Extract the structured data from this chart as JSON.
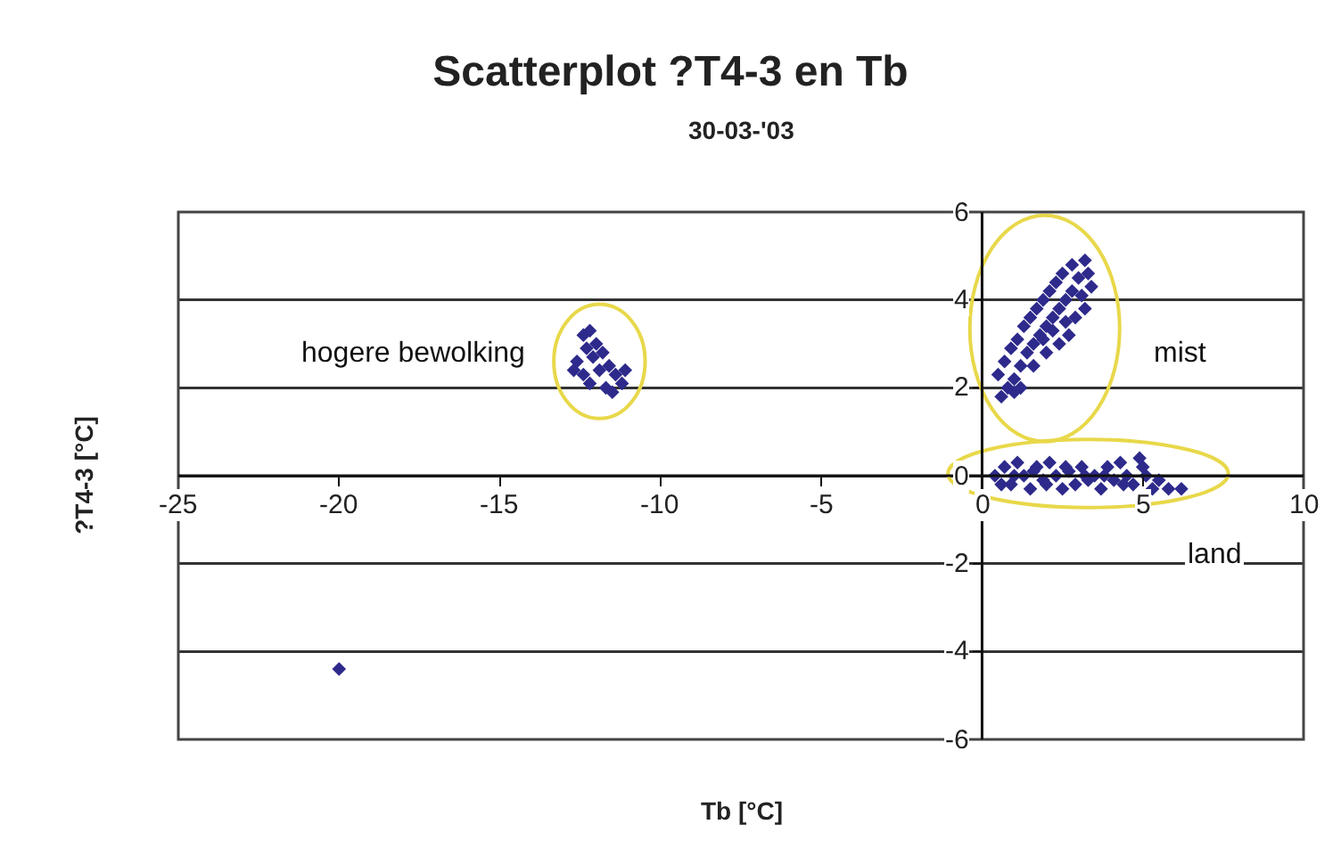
{
  "chart_data": {
    "type": "scatter",
    "title": "Scatterplot ?T4-3 en Tb",
    "subtitle": "30-03-'03",
    "xlabel": "Tb [°C]",
    "ylabel": "?T4-3 [°C]",
    "xlim": [
      -25,
      10
    ],
    "xticks": [
      -25,
      -20,
      -15,
      -10,
      -5,
      0,
      5,
      10
    ],
    "ylim": [
      -6,
      6
    ],
    "yticks": [
      -6,
      -4,
      -2,
      0,
      2,
      4,
      6
    ],
    "grid": "y",
    "marker": "diamond",
    "annotations": [
      "hogere bewolking",
      "mist",
      "land"
    ],
    "series": [
      {
        "color": "#2e2a8c",
        "x": [
          -12.4,
          -12.2,
          -12.3,
          -12.0,
          -12.6,
          -12.1,
          -11.8,
          -12.4,
          -11.9,
          -11.6,
          -12.2,
          -11.4,
          -11.7,
          -11.2,
          -11.5,
          -12.7,
          -11.1
        ],
        "values": [
          3.2,
          3.3,
          2.9,
          3.0,
          2.6,
          2.7,
          2.8,
          2.3,
          2.4,
          2.5,
          2.1,
          2.3,
          2.0,
          2.1,
          1.9,
          2.4,
          2.4
        ]
      },
      {
        "color": "#2e2a8c",
        "x": [
          0.6,
          0.8,
          0.5,
          1.0,
          0.7,
          1.2,
          0.9,
          1.4,
          1.1,
          1.6,
          1.3,
          1.8,
          1.5,
          2.0,
          1.7,
          2.2,
          1.9,
          2.4,
          2.1,
          2.6,
          2.3,
          2.8,
          2.5,
          3.0,
          2.8,
          3.2,
          3.3,
          3.1,
          2.9,
          2.7,
          2.4,
          2.0,
          1.6,
          1.2,
          3.4,
          3.2,
          2.6,
          1.0,
          1.9,
          2.2
        ],
        "values": [
          1.8,
          2.0,
          2.3,
          2.2,
          2.6,
          2.5,
          2.9,
          2.8,
          3.1,
          3.0,
          3.4,
          3.2,
          3.6,
          3.4,
          3.8,
          3.6,
          4.0,
          3.8,
          4.2,
          4.0,
          4.4,
          4.2,
          4.6,
          4.5,
          4.8,
          4.9,
          4.6,
          4.1,
          3.6,
          3.2,
          3.0,
          2.8,
          2.5,
          2.0,
          4.3,
          3.8,
          3.5,
          1.9,
          3.1,
          3.3
        ]
      },
      {
        "color": "#2e2a8c",
        "x": [
          0.4,
          0.7,
          0.9,
          1.1,
          1.3,
          1.5,
          1.7,
          1.9,
          2.1,
          2.3,
          2.5,
          2.7,
          2.9,
          3.1,
          3.3,
          3.5,
          3.7,
          3.9,
          4.1,
          4.3,
          4.5,
          4.7,
          4.9,
          5.1,
          5.3,
          5.5,
          5.8,
          6.2,
          0.6,
          1.0,
          1.6,
          2.0,
          2.6,
          3.2,
          3.8,
          4.4,
          5.0
        ],
        "values": [
          0.0,
          0.2,
          -0.2,
          0.3,
          0.0,
          -0.3,
          0.2,
          -0.1,
          0.3,
          0.0,
          -0.3,
          0.1,
          -0.2,
          0.2,
          -0.1,
          0.0,
          -0.3,
          0.2,
          -0.1,
          0.3,
          0.0,
          -0.2,
          0.4,
          0.0,
          -0.3,
          -0.1,
          -0.3,
          -0.3,
          -0.2,
          0.0,
          0.1,
          -0.2,
          0.2,
          0.0,
          0.0,
          -0.2,
          0.2
        ]
      },
      {
        "color": "#2e2a8c",
        "x": [
          -20
        ],
        "values": [
          -4.4
        ]
      }
    ]
  }
}
